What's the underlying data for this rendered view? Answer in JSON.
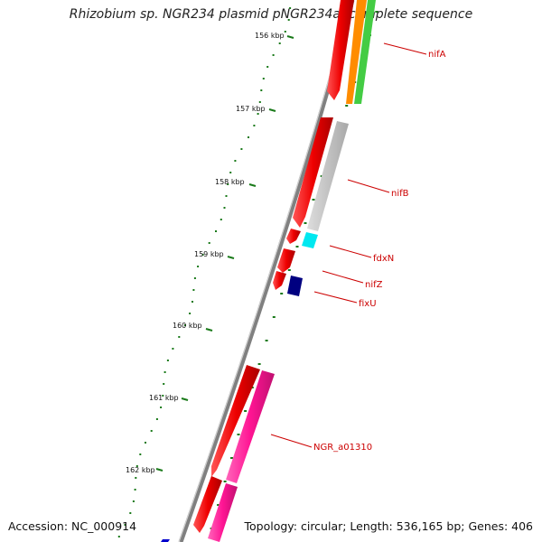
{
  "title": "Rhizobium sp. NGR234 plasmid pNGR234a, complete sequence",
  "footer": {
    "accession": "Accession: NC_000914",
    "summary": "Topology: circular; Length: 536,165 bp; Genes: 406"
  },
  "ticks": [
    {
      "label": "156 kbp"
    },
    {
      "label": "157 kbp"
    },
    {
      "label": "158 kbp"
    },
    {
      "label": "159 kbp"
    },
    {
      "label": "160 kbp"
    },
    {
      "label": "161 kbp"
    },
    {
      "label": "162 kbp"
    }
  ],
  "genes": [
    {
      "label": "nifA",
      "color": "#cc0000"
    },
    {
      "label": "nifB",
      "color": "#cc0000"
    },
    {
      "label": "fdxN",
      "color": "#cc0000"
    },
    {
      "label": "nifZ",
      "color": "#cc0000"
    },
    {
      "label": "fixU",
      "color": "#cc0000"
    },
    {
      "label": "NGR_a01310",
      "color": "#cc0000"
    }
  ],
  "colors": {
    "backbone": "#808080",
    "cds": "#ff0000",
    "gene_grey": "#bbbbbb",
    "gene_cyan": "#00ffff",
    "gene_navy": "#000080",
    "gene_pink": "#ff1493",
    "gene_orange": "#ff8c00",
    "gene_green": "#44cc44",
    "gc_marks": "#1a7a1a"
  }
}
